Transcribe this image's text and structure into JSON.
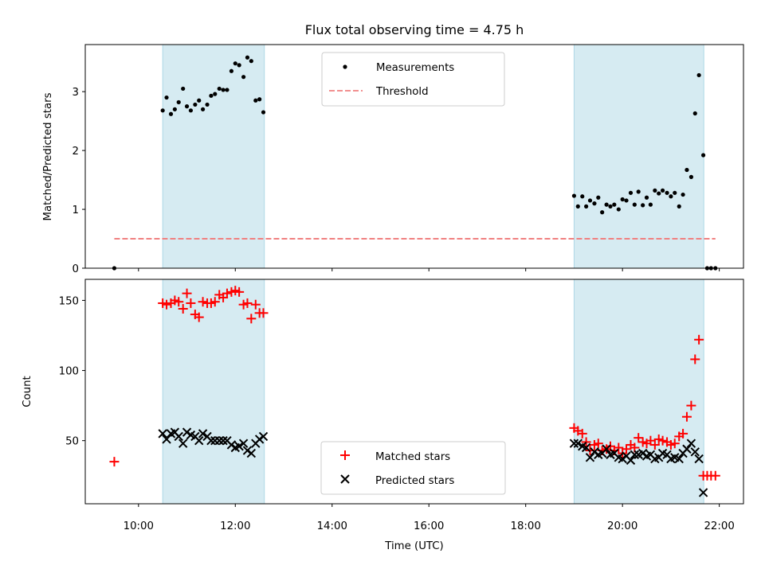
{
  "chart_data": [
    {
      "type": "scatter",
      "title": "Flux total observing time = 4.75 h",
      "xlabel": "",
      "ylabel": "Matched/Predicted stars",
      "xlim": [
        8.9,
        22.5
      ],
      "ylim": [
        0,
        3.8
      ],
      "yticks": [
        0,
        1,
        2,
        3
      ],
      "grid": false,
      "legend_position": "upper-center",
      "shaded_spans": [
        [
          10.5,
          12.6
        ],
        [
          19.0,
          21.68
        ]
      ],
      "shade_color": "#add8e6",
      "series": [
        {
          "name": "Measurements",
          "color": "#000000",
          "marker": "dot",
          "x": [
            9.5,
            10.5,
            10.58,
            10.67,
            10.75,
            10.83,
            10.92,
            11.0,
            11.08,
            11.17,
            11.25,
            11.33,
            11.42,
            11.5,
            11.58,
            11.67,
            11.75,
            11.83,
            11.92,
            12.0,
            12.08,
            12.17,
            12.25,
            12.33,
            12.42,
            12.5,
            12.58,
            19.0,
            19.08,
            19.17,
            19.25,
            19.33,
            19.42,
            19.5,
            19.58,
            19.67,
            19.75,
            19.83,
            19.92,
            20.0,
            20.08,
            20.17,
            20.25,
            20.33,
            20.42,
            20.5,
            20.58,
            20.67,
            20.75,
            20.83,
            20.92,
            21.0,
            21.08,
            21.17,
            21.25,
            21.33,
            21.42,
            21.5,
            21.58,
            21.67,
            21.75,
            21.83,
            21.92
          ],
          "y": [
            0.0,
            2.68,
            2.9,
            2.62,
            2.7,
            2.82,
            3.05,
            2.75,
            2.68,
            2.78,
            2.85,
            2.7,
            2.78,
            2.93,
            2.96,
            3.05,
            3.03,
            3.03,
            3.35,
            3.48,
            3.45,
            3.25,
            3.58,
            3.52,
            2.85,
            2.87,
            2.65,
            1.23,
            1.05,
            1.22,
            1.05,
            1.15,
            1.1,
            1.2,
            0.95,
            1.08,
            1.05,
            1.08,
            1.0,
            1.17,
            1.15,
            1.28,
            1.08,
            1.3,
            1.07,
            1.2,
            1.08,
            1.32,
            1.27,
            1.32,
            1.28,
            1.22,
            1.28,
            1.05,
            1.25,
            1.67,
            1.55,
            2.63,
            3.28,
            1.92,
            0.0,
            0.0,
            0.0
          ]
        },
        {
          "name": "Threshold",
          "color": "#f08080",
          "line_style": "dashed",
          "x": [
            9.5,
            21.92
          ],
          "y": [
            0.5,
            0.5
          ]
        }
      ]
    },
    {
      "type": "scatter",
      "xlabel": "Time (UTC)",
      "ylabel": "Count",
      "xlim": [
        8.9,
        22.5
      ],
      "ylim": [
        5,
        165
      ],
      "xticks": [
        10,
        12,
        14,
        16,
        18,
        20,
        22
      ],
      "xtick_labels": [
        "10:00",
        "12:00",
        "14:00",
        "16:00",
        "18:00",
        "20:00",
        "22:00"
      ],
      "yticks": [
        50,
        100,
        150
      ],
      "grid": false,
      "legend_position": "lower-center",
      "shaded_spans": [
        [
          10.5,
          12.6
        ],
        [
          19.0,
          21.68
        ]
      ],
      "shade_color": "#add8e6",
      "series": [
        {
          "name": "Matched stars",
          "color": "#ff0000",
          "marker": "plus",
          "x": [
            9.5,
            10.5,
            10.58,
            10.67,
            10.75,
            10.83,
            10.92,
            11.0,
            11.08,
            11.17,
            11.25,
            11.33,
            11.42,
            11.5,
            11.58,
            11.67,
            11.75,
            11.83,
            11.92,
            12.0,
            12.08,
            12.17,
            12.25,
            12.33,
            12.42,
            12.5,
            12.58,
            19.0,
            19.08,
            19.17,
            19.25,
            19.33,
            19.42,
            19.5,
            19.58,
            19.67,
            19.75,
            19.83,
            19.92,
            20.0,
            20.08,
            20.17,
            20.25,
            20.33,
            20.42,
            20.5,
            20.58,
            20.67,
            20.75,
            20.83,
            20.92,
            21.0,
            21.08,
            21.17,
            21.25,
            21.33,
            21.42,
            21.5,
            21.58,
            21.67,
            21.75,
            21.83,
            21.92
          ],
          "y": [
            35,
            148,
            147,
            148,
            150,
            149,
            144,
            155,
            148,
            140,
            138,
            149,
            148,
            148,
            149,
            154,
            152,
            155,
            156,
            157,
            156,
            147,
            148,
            137,
            147,
            141,
            141,
            59,
            57,
            55,
            49,
            43,
            47,
            48,
            43,
            44,
            46,
            43,
            45,
            41,
            44,
            47,
            45,
            52,
            49,
            48,
            50,
            47,
            51,
            50,
            49,
            47,
            48,
            53,
            55,
            67,
            75,
            108,
            122,
            25,
            25,
            25,
            25
          ],
          "note_hidden": false
        },
        {
          "name": "Predicted stars",
          "color": "#000000",
          "marker": "x",
          "x": [
            10.5,
            10.58,
            10.67,
            10.75,
            10.83,
            10.92,
            11.0,
            11.08,
            11.17,
            11.25,
            11.33,
            11.42,
            11.5,
            11.58,
            11.67,
            11.75,
            11.83,
            11.92,
            12.0,
            12.08,
            12.17,
            12.25,
            12.33,
            12.42,
            12.5,
            12.58,
            19.0,
            19.08,
            19.17,
            19.25,
            19.33,
            19.42,
            19.5,
            19.58,
            19.67,
            19.75,
            19.83,
            19.92,
            20.0,
            20.08,
            20.17,
            20.25,
            20.33,
            20.42,
            20.5,
            20.58,
            20.67,
            20.75,
            20.83,
            20.92,
            21.0,
            21.08,
            21.17,
            21.25,
            21.33,
            21.42,
            21.5,
            21.58,
            21.67
          ],
          "y": [
            55,
            51,
            55,
            56,
            53,
            48,
            56,
            54,
            53,
            50,
            55,
            53,
            50,
            50,
            50,
            50,
            50,
            47,
            45,
            46,
            48,
            43,
            41,
            48,
            51,
            53,
            48,
            48,
            46,
            45,
            38,
            42,
            40,
            41,
            44,
            40,
            41,
            38,
            37,
            39,
            36,
            40,
            40,
            41,
            39,
            40,
            37,
            38,
            41,
            40,
            37,
            38,
            37,
            41,
            44,
            48,
            42,
            37,
            13
          ]
        }
      ]
    }
  ]
}
